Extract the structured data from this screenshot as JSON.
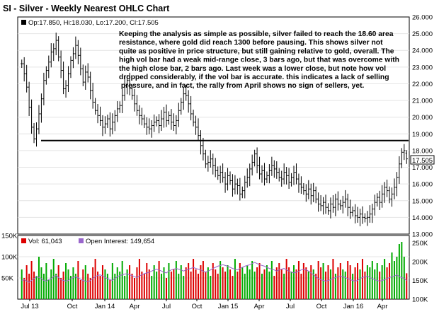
{
  "chart_title": "SI - Silver - Weekly Nearest OHLC Chart",
  "ohlc_label": "Op:17.850, Hi:18.030, Lo:17.200, Cl:17.505",
  "annotation_lines": [
    "Keeping the analysis as simple as possible, silver failed to reach the 18.60 area",
    "resistance, where gold did reach 1300 before pausing.  This shows silver not",
    "quite as positive in price structure, but still gaining relative to gold, overall.  The",
    "high vol bar had a weak mid-range close, 3 bars ago, but that was overcome with",
    "the high close bar, 2 bars ago.  Last week was a lower close, but note how vol",
    "dropped considerably, if the vol bar is accurate.  this indicates a lack of selling",
    "  pressure, and in fact, the rally from April shows no sign of sellers, yet."
  ],
  "vol_legend_label": "Vol: 61,043",
  "oi_legend_label": "Open Interest: 149,654",
  "last_price_label": "17.505",
  "colors": {
    "price_bars": "#000000",
    "vol_up": "#00aa00",
    "vol_down": "#dd0000",
    "open_interest": "#9966cc",
    "resistance_line": "#000000",
    "grid": "#e4e4e4"
  },
  "chart_data": [
    {
      "type": "ohlc",
      "x_tick_labels": [
        "Jul 13",
        "Oct",
        "Jan 14",
        "Apr",
        "Jul",
        "Oct",
        "Jan 15",
        "Apr",
        "Jul",
        "Oct",
        "Jan 16",
        "Apr"
      ],
      "y_tick_labels": [
        "13.000",
        "14.000",
        "15.000",
        "16.000",
        "17.000",
        "18.000",
        "19.000",
        "20.000",
        "21.000",
        "22.000",
        "23.000",
        "24.000",
        "25.000",
        "26.000"
      ],
      "ylim": [
        13,
        26
      ],
      "grid": true,
      "resistance_level": 18.6,
      "last": {
        "open": 17.85,
        "high": 18.03,
        "low": 17.2,
        "close": 17.505
      },
      "weekly_closes": [
        23.2,
        22.6,
        21.8,
        20.6,
        19.4,
        18.7,
        19.3,
        20.2,
        21.1,
        22.2,
        22.8,
        23.3,
        23.9,
        24.1,
        24.6,
        23.6,
        22.8,
        21.7,
        21.9,
        22.6,
        23.4,
        23.8,
        24.3,
        23.7,
        22.9,
        22.1,
        22.7,
        22.4,
        21.6,
        20.9,
        20.4,
        20.1,
        19.8,
        19.4,
        19.6,
        19.9,
        19.3,
        19.7,
        20.1,
        20.5,
        20.7,
        21.3,
        21.9,
        22.2,
        21.7,
        21.3,
        20.8,
        20.4,
        20.1,
        19.9,
        19.6,
        19.4,
        19.3,
        19.5,
        19.7,
        19.8,
        19.5,
        19.9,
        20.3,
        19.8,
        20.1,
        19.7,
        19.5,
        19.8,
        20.4,
        20.9,
        21.4,
        21.3,
        20.8,
        20.2,
        19.7,
        19.4,
        18.9,
        18.3,
        17.8,
        17.2,
        17.3,
        17.5,
        17.1,
        16.8,
        16.5,
        16.7,
        16.4,
        16.0,
        16.5,
        16.2,
        15.7,
        16.0,
        15.9,
        15.4,
        15.6,
        16.1,
        16.4,
        16.9,
        17.3,
        17.8,
        17.1,
        16.6,
        16.8,
        16.3,
        16.5,
        16.8,
        17.1,
        16.9,
        16.7,
        16.4,
        16.3,
        16.7,
        16.5,
        16.1,
        16.4,
        16.7,
        16.3,
        16.0,
        15.8,
        15.6,
        15.4,
        15.7,
        15.3,
        15.6,
        15.1,
        14.8,
        14.7,
        14.9,
        14.6,
        14.4,
        14.8,
        14.6,
        15.1,
        14.8,
        14.7,
        14.9,
        15.1,
        14.6,
        14.3,
        14.4,
        14.1,
        14.0,
        14.2,
        14.0,
        13.95,
        14.0,
        14.2,
        14.5,
        14.9,
        15.2,
        14.9,
        15.4,
        15.8,
        15.6,
        15.1,
        15.4,
        15.8,
        16.4,
        17.2,
        17.9,
        18.0,
        17.505
      ]
    },
    {
      "type": "bar",
      "series": [
        {
          "name": "Vol"
        },
        {
          "name": "Open Interest"
        }
      ],
      "y_tick_labels": [
        "50K",
        "100K",
        "150K"
      ],
      "y2_tick_labels": [
        "100K",
        "150K",
        "200K",
        "250K"
      ],
      "ylim": [
        0,
        150000
      ],
      "y2lim": [
        100000,
        270000
      ],
      "last_volume": 61043,
      "last_open_interest": 149654,
      "weekly_volume": [
        70000,
        50000,
        80000,
        60000,
        90000,
        65000,
        55000,
        100000,
        75000,
        60000,
        85000,
        45000,
        70000,
        95000,
        60000,
        80000,
        50000,
        65000,
        85000,
        70000,
        55000,
        75000,
        60000,
        90000,
        45000,
        70000,
        80000,
        60000,
        50000,
        75000,
        95000,
        65000,
        55000,
        80000,
        70000,
        60000,
        45000,
        85000,
        60000,
        75000,
        65000,
        90000,
        55000,
        70000,
        80000,
        60000,
        50000,
        75000,
        95000,
        65000,
        60000,
        85000,
        70000,
        55000,
        80000,
        65000,
        90000,
        60000,
        75000,
        50000,
        85000,
        65000,
        70000,
        90000,
        60000,
        80000,
        55000,
        75000,
        85000,
        65000,
        95000,
        70000,
        60000,
        80000,
        90000,
        65000,
        75000,
        55000,
        85000,
        70000,
        60000,
        90000,
        75000,
        65000,
        80000,
        70000,
        55000,
        95000,
        65000,
        85000,
        75000,
        60000,
        80000,
        70000,
        90000,
        65000,
        75000,
        85000,
        60000,
        70000,
        80000,
        65000,
        90000,
        55000,
        75000,
        85000,
        70000,
        60000,
        95000,
        75000,
        65000,
        80000,
        70000,
        90000,
        60000,
        85000,
        75000,
        65000,
        80000,
        70000,
        60000,
        90000,
        75000,
        85000,
        65000,
        80000,
        70000,
        95000,
        60000,
        75000,
        85000,
        70000,
        65000,
        90000,
        80000,
        60000,
        75000,
        85000,
        70000,
        95000,
        65000,
        80000,
        75000,
        90000,
        70000,
        85000,
        65000,
        80000,
        95000,
        75000,
        85000,
        110000,
        90000,
        100000,
        130000,
        135000,
        100000,
        61043
      ],
      "weekly_open_interest": [
        150000,
        152000,
        148000,
        145000,
        150000,
        155000,
        160000,
        158000,
        155000,
        150000,
        148000,
        152000,
        155000,
        160000,
        163000,
        158000,
        152000,
        150000,
        148000,
        150000,
        155000,
        158000,
        160000,
        157000,
        153000,
        150000,
        148000,
        146000,
        150000,
        155000,
        160000,
        163000,
        165000,
        162000,
        158000,
        155000,
        152000,
        150000,
        155000,
        160000,
        163000,
        165000,
        167000,
        168000,
        165000,
        163000,
        160000,
        158000,
        162000,
        165000,
        168000,
        170000,
        172000,
        175000,
        178000,
        180000,
        178000,
        175000,
        172000,
        170000,
        175000,
        178000,
        180000,
        182000,
        180000,
        178000,
        175000,
        178000,
        180000,
        182000,
        185000,
        182000,
        180000,
        178000,
        175000,
        172000,
        175000,
        178000,
        182000,
        185000,
        188000,
        190000,
        192000,
        190000,
        188000,
        185000,
        182000,
        180000,
        178000,
        182000,
        185000,
        188000,
        190000,
        192000,
        195000,
        198000,
        195000,
        192000,
        190000,
        188000,
        185000,
        182000,
        180000,
        178000,
        175000,
        178000,
        180000,
        182000,
        178000,
        175000,
        172000,
        170000,
        172000,
        175000,
        178000,
        180000,
        178000,
        175000,
        170000,
        165000,
        160000,
        155000,
        152000,
        150000,
        148000,
        150000,
        152000,
        155000,
        158000,
        160000,
        162000,
        160000,
        158000,
        155000,
        152000,
        150000,
        148000,
        150000,
        155000,
        158000,
        160000,
        162000,
        158000,
        155000,
        152000,
        150000,
        148000,
        150000,
        152000,
        155000,
        158000,
        160000,
        162000,
        165000,
        160000,
        158000,
        155000,
        149654
      ]
    }
  ]
}
